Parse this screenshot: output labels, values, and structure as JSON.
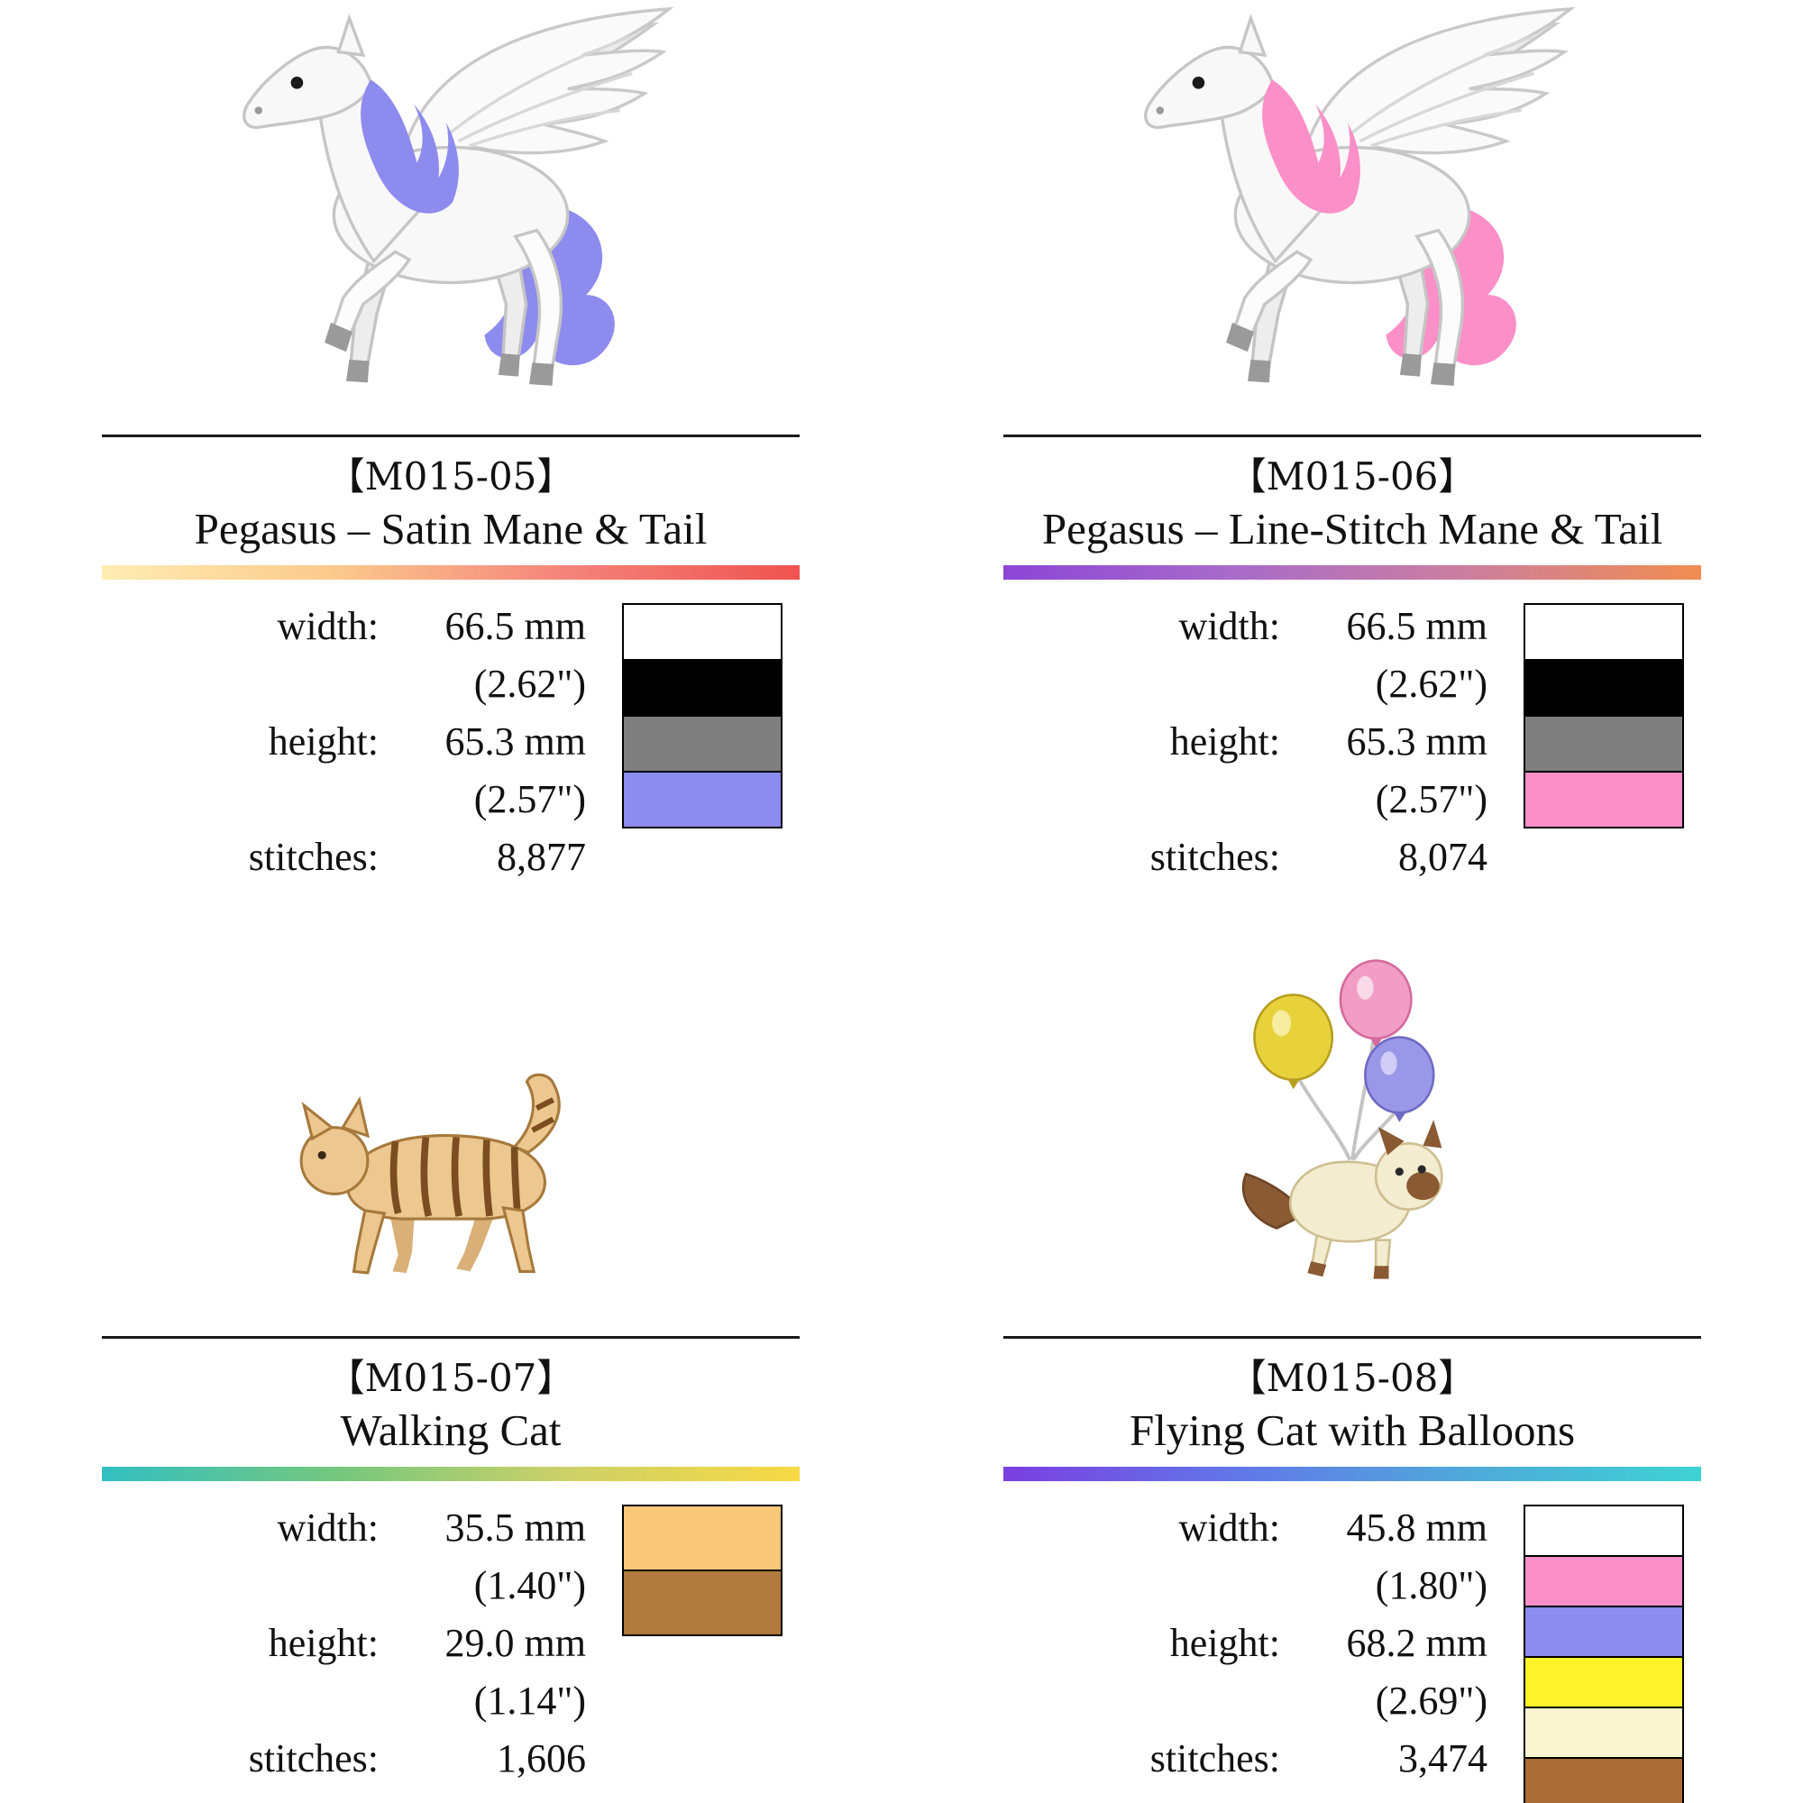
{
  "page": {
    "type": "embroidery-design-sheet"
  },
  "cards": [
    {
      "code": "【M015-05】",
      "title": "Pegasus – Satin Mane & Tail",
      "image": "pegasus-with-satin-mane-and-tail",
      "specs": {
        "width_label": "width:",
        "width_value": "66.5 mm",
        "width_inches": "(2.62\")",
        "height_label": "height:",
        "height_value": "65.3 mm",
        "height_inches": "(2.57\")",
        "stitches_label": "stitches:",
        "stitches_value": "8,877"
      },
      "gradient_colors": [
        "#ffedb3",
        "#fbc98c",
        "#f4837b",
        "#ef5350"
      ],
      "thread_colors": [
        "#ffffff",
        "#000000",
        "#7f7f7f",
        "#8d8bee"
      ]
    },
    {
      "code": "【M015-06】",
      "title": "Pegasus – Line-Stitch Mane & Tail",
      "image": "pegasus-with-line-stitch-mane-and-tail",
      "specs": {
        "width_label": "width:",
        "width_value": "66.5 mm",
        "width_inches": "(2.62\")",
        "height_label": "height:",
        "height_value": "65.3 mm",
        "height_inches": "(2.57\")",
        "stitches_label": "stitches:",
        "stitches_value": "8,074"
      },
      "gradient_colors": [
        "#8b46d6",
        "#a86cc9",
        "#cc7f9e",
        "#f08d50"
      ],
      "thread_colors": [
        "#ffffff",
        "#000000",
        "#7f7f7f",
        "#fb8fc7"
      ]
    },
    {
      "code": "【M015-07】",
      "title": "Walking Cat",
      "image": "walking-tabby-cat",
      "specs": {
        "width_label": "width:",
        "width_value": "35.5 mm",
        "width_inches": "(1.40\")",
        "height_label": "height:",
        "height_value": "29.0 mm",
        "height_inches": "(1.14\")",
        "stitches_label": "stitches:",
        "stitches_value": "1,606"
      },
      "gradient_colors": [
        "#33bfc2",
        "#74c77e",
        "#cdd168",
        "#f7d944"
      ],
      "thread_colors": [
        "#f9c779",
        "#b0793d"
      ]
    },
    {
      "code": "【M015-08】",
      "title": "Flying Cat with Balloons",
      "image": "flying-cat-with-balloons",
      "specs": {
        "width_label": "width:",
        "width_value": "45.8 mm",
        "width_inches": "(1.80\")",
        "height_label": "height:",
        "height_value": "68.2 mm",
        "height_inches": "(2.69\")",
        "stitches_label": "stitches:",
        "stitches_value": "3,474"
      },
      "gradient_colors": [
        "#7a3fe0",
        "#6277e8",
        "#4fa9da",
        "#3ed3d3"
      ],
      "thread_colors": [
        "#ffffff",
        "#fb8fc7",
        "#8d8bee",
        "#fdf32a",
        "#faf6cf",
        "#a96c35"
      ]
    }
  ]
}
